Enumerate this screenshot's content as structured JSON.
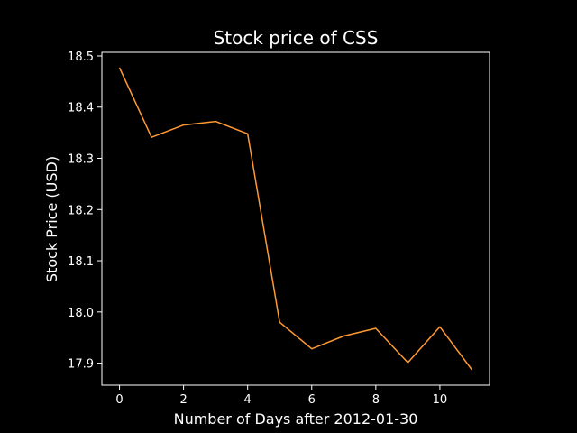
{
  "chart_data": {
    "type": "line",
    "title": "Stock price of CSS",
    "xlabel": "Number of Days after 2012-01-30",
    "ylabel": "Stock Price (USD)",
    "x": [
      0,
      1,
      2,
      3,
      4,
      5,
      6,
      7,
      8,
      9,
      10,
      11
    ],
    "series": [
      {
        "values": [
          18.477,
          18.341,
          18.365,
          18.372,
          18.348,
          17.98,
          17.928,
          17.953,
          17.968,
          17.901,
          17.971,
          17.887
        ]
      }
    ],
    "xlim": [
      -0.55,
      11.55
    ],
    "ylim": [
      17.857,
      18.507
    ],
    "xticks": [
      0,
      2,
      4,
      6,
      8,
      10
    ],
    "yticks": [
      17.9,
      18.0,
      18.1,
      18.2,
      18.3,
      18.4,
      18.5
    ],
    "ytick_labels": [
      "17.9",
      "18.0",
      "18.1",
      "18.2",
      "18.3",
      "18.4",
      "18.5"
    ],
    "grid": false,
    "background_color": "#000000",
    "axis_color": "#ffffff",
    "line_color": "#ff9933"
  }
}
